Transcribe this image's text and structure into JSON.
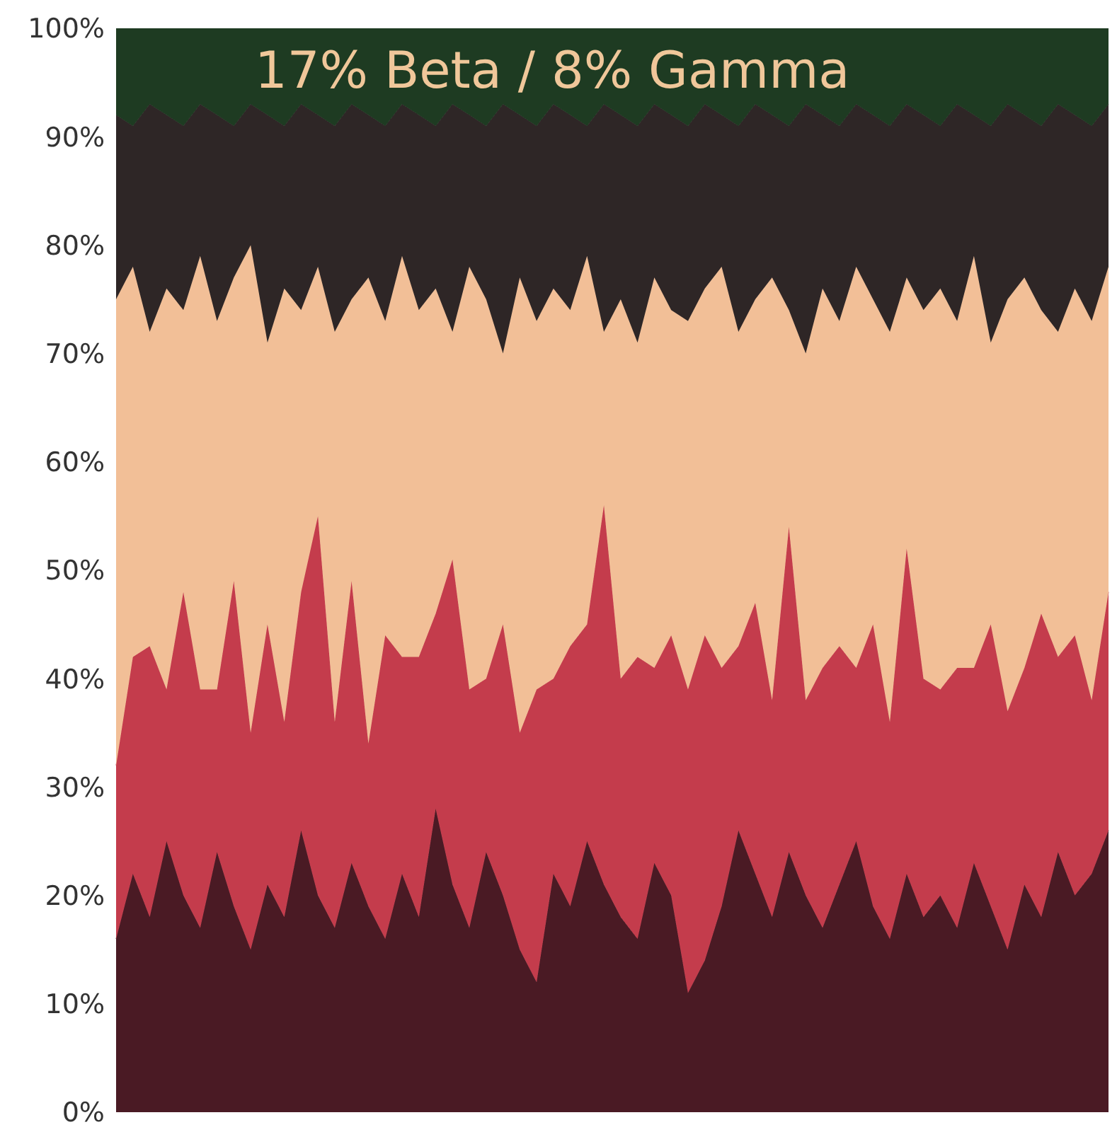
{
  "chart_data": {
    "type": "area",
    "stacked": true,
    "tick_labels": "y",
    "annotations": [
      "17% Beta / 8% Gamma"
    ],
    "categories": [
      null,
      null,
      null,
      null,
      null,
      null,
      null,
      null,
      null,
      null,
      null,
      null,
      null,
      null,
      null,
      null,
      null,
      null,
      null,
      null,
      null,
      null,
      null,
      null,
      null,
      null,
      null,
      null,
      null,
      null,
      null,
      null,
      null,
      null,
      null,
      null,
      null,
      null,
      null,
      null,
      null,
      null,
      null,
      null,
      null,
      null,
      null,
      null,
      null,
      null,
      null,
      null,
      null,
      null,
      null,
      null,
      null,
      null,
      null,
      null
    ],
    "ylim": [
      0,
      100
    ],
    "yticks": [
      {
        "value": 0,
        "label": "0%"
      },
      {
        "value": 10,
        "label": "10%"
      },
      {
        "value": 20,
        "label": "20%"
      },
      {
        "value": 30,
        "label": "30%"
      },
      {
        "value": 40,
        "label": "40%"
      },
      {
        "value": 50,
        "label": "50%"
      },
      {
        "value": 60,
        "label": "60%"
      },
      {
        "value": 70,
        "label": "70%"
      },
      {
        "value": 80,
        "label": "80%"
      },
      {
        "value": 90,
        "label": "90%"
      },
      {
        "value": 100,
        "label": "100%"
      }
    ],
    "series": [
      {
        "color": "#4a1a24",
        "values": [
          16,
          22,
          18,
          25,
          20,
          17,
          24,
          19,
          15,
          21,
          18,
          26,
          20,
          17,
          23,
          19,
          16,
          22,
          18,
          28,
          21,
          17,
          24,
          20,
          15,
          12,
          22,
          19,
          25,
          21,
          18,
          16,
          23,
          20,
          11,
          14,
          19,
          26,
          22,
          18,
          24,
          20,
          17,
          21,
          25,
          19,
          16,
          22,
          18,
          20,
          17,
          23,
          19,
          15,
          21,
          18,
          24,
          20,
          22,
          26
        ]
      },
      {
        "color": "#c43c4c",
        "values": [
          16,
          20,
          25,
          14,
          28,
          22,
          15,
          30,
          20,
          24,
          18,
          22,
          35,
          19,
          26,
          15,
          28,
          20,
          24,
          18,
          30,
          22,
          16,
          25,
          20,
          27,
          18,
          24,
          20,
          35,
          22,
          26,
          18,
          24,
          28,
          30,
          22,
          17,
          25,
          20,
          30,
          18,
          24,
          22,
          16,
          26,
          20,
          30,
          22,
          19,
          24,
          18,
          26,
          22,
          20,
          28,
          18,
          24,
          16,
          22
        ]
      },
      {
        "color": "#f2bf97",
        "values": [
          43,
          36,
          29,
          37,
          26,
          40,
          34,
          28,
          45,
          26,
          40,
          26,
          23,
          36,
          26,
          43,
          29,
          37,
          32,
          30,
          21,
          39,
          35,
          25,
          42,
          34,
          36,
          31,
          34,
          16,
          35,
          29,
          36,
          30,
          34,
          32,
          37,
          29,
          28,
          39,
          20,
          32,
          35,
          30,
          37,
          30,
          36,
          25,
          34,
          37,
          32,
          38,
          26,
          38,
          36,
          28,
          30,
          32,
          35,
          30
        ]
      },
      {
        "color": "#2e2626",
        "values": [
          17,
          13,
          21,
          16,
          17,
          14,
          19,
          14,
          13,
          21,
          15,
          19,
          14,
          19,
          18,
          15,
          18,
          14,
          18,
          15,
          21,
          14,
          16,
          23,
          15,
          18,
          17,
          18,
          12,
          21,
          17,
          20,
          16,
          18,
          18,
          17,
          14,
          19,
          18,
          15,
          17,
          23,
          16,
          18,
          15,
          17,
          19,
          16,
          18,
          15,
          20,
          13,
          20,
          18,
          15,
          17,
          21,
          16,
          18,
          15
        ]
      },
      {
        "color": "#1e3b22",
        "values": [
          8,
          9,
          7,
          8,
          9,
          7,
          8,
          9,
          7,
          8,
          9,
          7,
          8,
          9,
          7,
          8,
          9,
          7,
          8,
          9,
          7,
          8,
          9,
          7,
          8,
          9,
          7,
          8,
          9,
          7,
          8,
          9,
          7,
          8,
          9,
          7,
          8,
          9,
          7,
          8,
          9,
          7,
          8,
          9,
          7,
          8,
          9,
          7,
          8,
          9,
          7,
          8,
          9,
          7,
          8,
          9,
          7,
          8,
          9,
          7
        ]
      }
    ]
  }
}
